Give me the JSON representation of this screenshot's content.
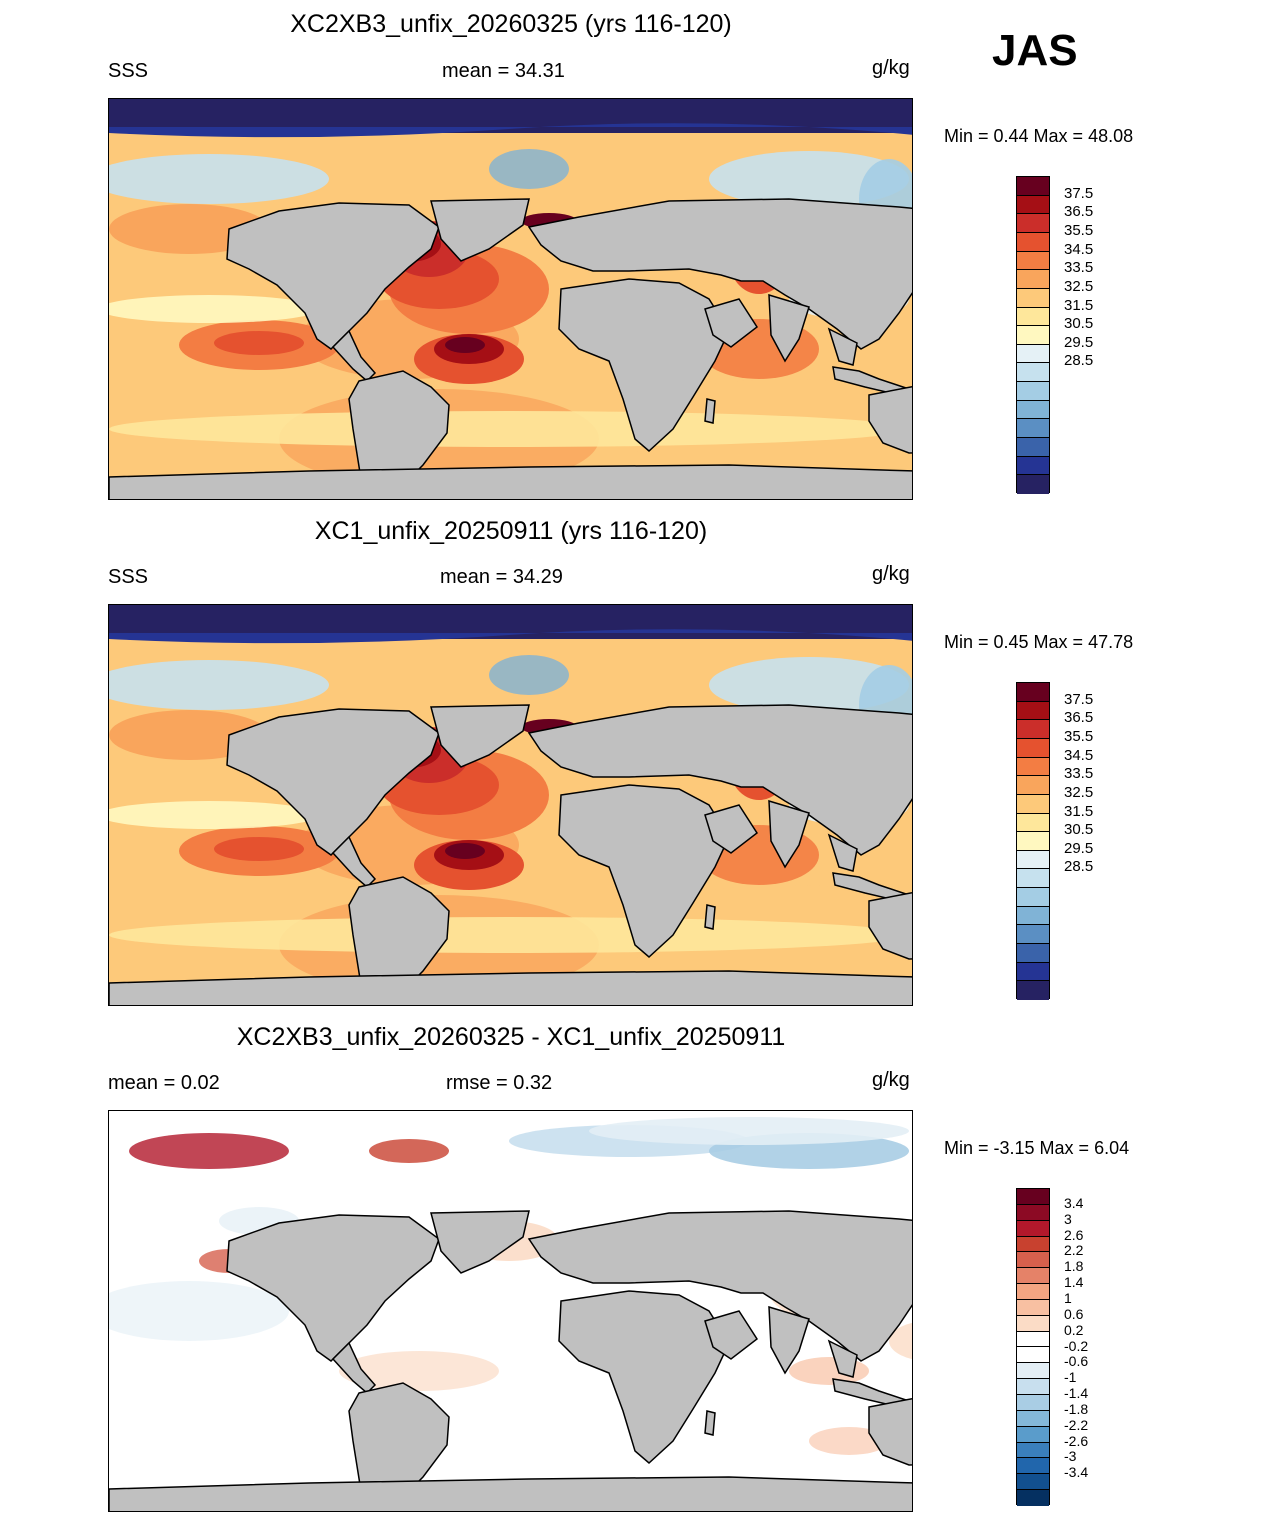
{
  "season": "JAS",
  "units": "g/kg",
  "panels": [
    {
      "title": "XC2XB3_unfix_20260325 (yrs 116-120)",
      "left_label": "SSS",
      "center_label": "mean =  34.31",
      "min_max": "Min =   0.44 Max =  48.08",
      "colorbar": "sss"
    },
    {
      "title": "XC1_unfix_20250911 (yrs 116-120)",
      "left_label": "SSS",
      "center_label": "mean =  34.29",
      "min_max": "Min =   0.45 Max =  47.78",
      "colorbar": "sss"
    },
    {
      "title": "XC2XB3_unfix_20260325 - XC1_unfix_20250911",
      "left_label": "mean =   0.02",
      "center_label": "rmse =   0.32",
      "min_max": "Min =  -3.15 Max =   6.04",
      "colorbar": "diff"
    }
  ],
  "colorbars": {
    "sss": {
      "labels": [
        "37.5",
        "36.5",
        "35.5",
        "34.5",
        "33.5",
        "32.5",
        "31.5",
        "30.5",
        "29.5",
        "28.5"
      ],
      "colors": [
        "#67001f",
        "#a50f15",
        "#cb2e2a",
        "#e5522f",
        "#f37d43",
        "#f9a55c",
        "#fdc97a",
        "#fee79b",
        "#fff8c0",
        "#e5f1f6",
        "#c6e1ee",
        "#a4cde4",
        "#80b3d6",
        "#5b8fc3",
        "#3a63aa",
        "#253494",
        "#262262"
      ]
    },
    "diff": {
      "labels": [
        "3.4",
        "3",
        "2.6",
        "2.2",
        "1.8",
        "1.4",
        "1",
        "0.6",
        "0.2",
        "-0.2",
        "-0.6",
        "-1",
        "-1.4",
        "-1.8",
        "-2.2",
        "-2.6",
        "-3",
        "-3.4"
      ],
      "colors": [
        "#67001f",
        "#8c0a24",
        "#b2182b",
        "#c8412f",
        "#d6604d",
        "#e58268",
        "#f4a582",
        "#f8c0a2",
        "#fbdcc6",
        "#ffffff",
        "#ffffff",
        "#e3eef5",
        "#c8dfee",
        "#a9cde4",
        "#84b8d9",
        "#5a9ccb",
        "#3a7fbc",
        "#2166ac",
        "#12508f",
        "#053061"
      ]
    }
  }
}
